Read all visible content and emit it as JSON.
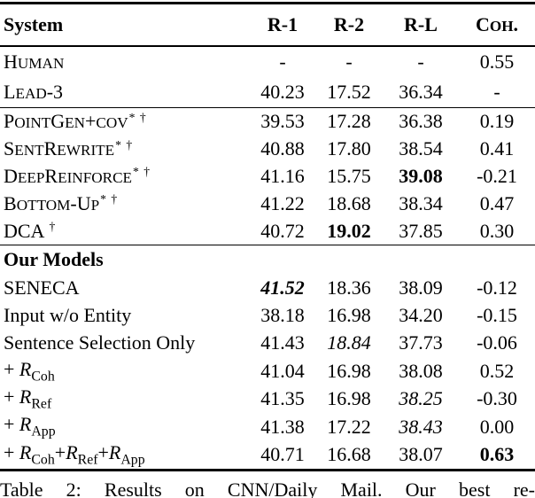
{
  "table": {
    "header": {
      "system_label": "System",
      "columns": [
        {
          "text": "R-1",
          "sc": false
        },
        {
          "text": "R-2",
          "sc": false
        },
        {
          "text": "R-L",
          "sc": false
        },
        {
          "text": "Coh.",
          "sc": true
        }
      ]
    },
    "sections": [
      {
        "rows": [
          {
            "label": {
              "type": "sc",
              "text": "Human"
            },
            "values": [
              {
                "t": "-"
              },
              {
                "t": "-"
              },
              {
                "t": "-"
              },
              {
                "t": "0.55"
              }
            ]
          },
          {
            "label": {
              "type": "sc",
              "text": "Lead-3"
            },
            "values": [
              {
                "t": "40.23"
              },
              {
                "t": "17.52"
              },
              {
                "t": "36.34"
              },
              {
                "t": "-"
              }
            ]
          }
        ]
      },
      {
        "rows": [
          {
            "label": {
              "type": "sc",
              "text": "PointGen+cov",
              "sup": "* †"
            },
            "values": [
              {
                "t": "39.53"
              },
              {
                "t": "17.28"
              },
              {
                "t": "36.38"
              },
              {
                "t": "0.19"
              }
            ]
          },
          {
            "label": {
              "type": "sc",
              "text": "SentRewrite",
              "sup": "* †"
            },
            "values": [
              {
                "t": "40.88"
              },
              {
                "t": "17.80"
              },
              {
                "t": "38.54"
              },
              {
                "t": "0.41"
              }
            ]
          },
          {
            "label": {
              "type": "sc",
              "text": "DeepReinforce",
              "sup": "* †"
            },
            "values": [
              {
                "t": "41.16"
              },
              {
                "t": "15.75"
              },
              {
                "t": "39.08",
                "s": "b"
              },
              {
                "t": "-0.21"
              }
            ]
          },
          {
            "label": {
              "type": "sc",
              "text": "Bottom-Up",
              "sup": "* †"
            },
            "values": [
              {
                "t": "41.22"
              },
              {
                "t": "18.68"
              },
              {
                "t": "38.34"
              },
              {
                "t": "0.47"
              }
            ]
          },
          {
            "label": {
              "type": "sc",
              "text": "DCA",
              "sup": "†",
              "supgap": true
            },
            "values": [
              {
                "t": "40.72"
              },
              {
                "t": "19.02",
                "s": "b"
              },
              {
                "t": "37.85"
              },
              {
                "t": "0.30"
              }
            ]
          }
        ]
      },
      {
        "rows": [
          {
            "label": {
              "type": "section",
              "text": "Our Models"
            },
            "values": []
          },
          {
            "label": {
              "type": "plain",
              "text": "SENECA"
            },
            "values": [
              {
                "t": "41.52",
                "s": "bi"
              },
              {
                "t": "18.36"
              },
              {
                "t": "38.09"
              },
              {
                "t": "-0.12"
              }
            ]
          },
          {
            "label": {
              "type": "plain",
              "text": "Input w/o Entity",
              "indent": true
            },
            "values": [
              {
                "t": "38.18"
              },
              {
                "t": "16.98"
              },
              {
                "t": "34.20"
              },
              {
                "t": "-0.15"
              }
            ]
          },
          {
            "label": {
              "type": "plain",
              "text": "Sentence Selection Only",
              "indent": true
            },
            "values": [
              {
                "t": "41.43"
              },
              {
                "t": "18.84",
                "s": "i"
              },
              {
                "t": "37.73"
              },
              {
                "t": "-0.06"
              }
            ]
          },
          {
            "label": {
              "type": "math",
              "terms": [
                "Coh"
              ],
              "indent": true
            },
            "values": [
              {
                "t": "41.04"
              },
              {
                "t": "16.98"
              },
              {
                "t": "38.08"
              },
              {
                "t": "0.52"
              }
            ]
          },
          {
            "label": {
              "type": "math",
              "terms": [
                "Ref"
              ],
              "indent": true
            },
            "values": [
              {
                "t": "41.35"
              },
              {
                "t": "16.98"
              },
              {
                "t": "38.25",
                "s": "i"
              },
              {
                "t": "-0.30"
              }
            ]
          },
          {
            "label": {
              "type": "math",
              "terms": [
                "App"
              ],
              "indent": true
            },
            "values": [
              {
                "t": "41.38"
              },
              {
                "t": "17.22"
              },
              {
                "t": "38.43",
                "s": "i"
              },
              {
                "t": "0.00"
              }
            ]
          },
          {
            "label": {
              "type": "math",
              "terms": [
                "Coh",
                "Ref",
                "App"
              ],
              "indent": true
            },
            "values": [
              {
                "t": "40.71"
              },
              {
                "t": "16.68"
              },
              {
                "t": "38.07"
              },
              {
                "t": "0.63",
                "s": "b"
              }
            ]
          }
        ]
      }
    ]
  },
  "caption": "Table 2: Results on CNN/Daily Mail. Our best re-"
}
